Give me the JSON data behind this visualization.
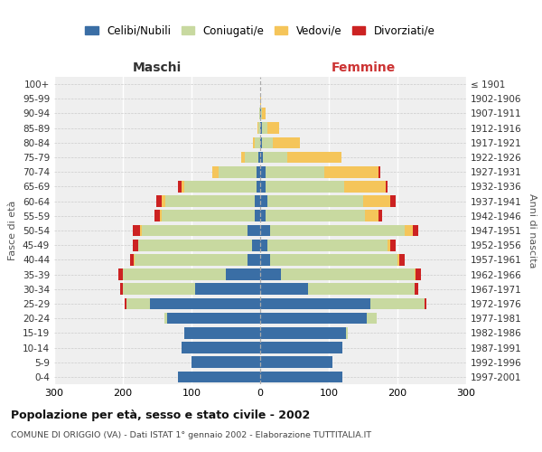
{
  "age_groups": [
    "0-4",
    "5-9",
    "10-14",
    "15-19",
    "20-24",
    "25-29",
    "30-34",
    "35-39",
    "40-44",
    "45-49",
    "50-54",
    "55-59",
    "60-64",
    "65-69",
    "70-74",
    "75-79",
    "80-84",
    "85-89",
    "90-94",
    "95-99",
    "100+"
  ],
  "birth_years": [
    "1997-2001",
    "1992-1996",
    "1987-1991",
    "1982-1986",
    "1977-1981",
    "1972-1976",
    "1967-1971",
    "1962-1966",
    "1957-1961",
    "1952-1956",
    "1947-1951",
    "1942-1946",
    "1937-1941",
    "1932-1936",
    "1927-1931",
    "1922-1926",
    "1917-1921",
    "1912-1916",
    "1907-1911",
    "1902-1906",
    "≤ 1901"
  ],
  "males_celibe": [
    120,
    100,
    115,
    110,
    135,
    160,
    95,
    50,
    18,
    12,
    18,
    8,
    8,
    5,
    5,
    2,
    0,
    0,
    0,
    0,
    0
  ],
  "males_coniugati": [
    0,
    0,
    0,
    1,
    5,
    35,
    105,
    150,
    165,
    165,
    155,
    135,
    130,
    105,
    55,
    20,
    8,
    3,
    1,
    0,
    0
  ],
  "males_vedovi": [
    0,
    0,
    0,
    0,
    0,
    0,
    0,
    0,
    1,
    1,
    2,
    3,
    5,
    5,
    10,
    5,
    3,
    1,
    0,
    0,
    0
  ],
  "males_divorziati": [
    0,
    0,
    0,
    0,
    0,
    2,
    4,
    6,
    6,
    8,
    10,
    8,
    8,
    5,
    0,
    0,
    0,
    0,
    0,
    0,
    0
  ],
  "females_celibe": [
    120,
    105,
    120,
    125,
    155,
    160,
    70,
    30,
    15,
    10,
    15,
    8,
    10,
    8,
    8,
    4,
    3,
    2,
    1,
    0,
    0
  ],
  "females_coniugati": [
    0,
    0,
    0,
    2,
    15,
    80,
    155,
    195,
    185,
    175,
    195,
    145,
    140,
    115,
    85,
    35,
    15,
    8,
    2,
    0,
    0
  ],
  "females_vedovi": [
    0,
    0,
    0,
    0,
    0,
    0,
    0,
    1,
    3,
    5,
    12,
    20,
    40,
    60,
    80,
    80,
    40,
    18,
    5,
    1,
    0
  ],
  "females_divorziati": [
    0,
    0,
    0,
    0,
    0,
    2,
    5,
    8,
    8,
    8,
    8,
    5,
    8,
    2,
    2,
    0,
    0,
    0,
    0,
    0,
    0
  ],
  "color_celibe": "#3A6EA5",
  "color_coniugati": "#C8D9A0",
  "color_vedovi": "#F5C55A",
  "color_divorziati": "#CC2222",
  "title": "Popolazione per età, sesso e stato civile - 2002",
  "subtitle": "COMUNE DI ORIGGIO (VA) - Dati ISTAT 1° gennaio 2002 - Elaborazione TUTTITALIA.IT",
  "xlabel_left": "Maschi",
  "xlabel_right": "Femmine",
  "ylabel_left": "Fasce di età",
  "ylabel_right": "Anni di nascita",
  "xmax": 300,
  "legend_labels": [
    "Celibi/Nubili",
    "Coniugati/e",
    "Vedovi/e",
    "Divorziati/e"
  ],
  "bg_color": "#FFFFFF",
  "plot_bg": "#EFEFEF"
}
